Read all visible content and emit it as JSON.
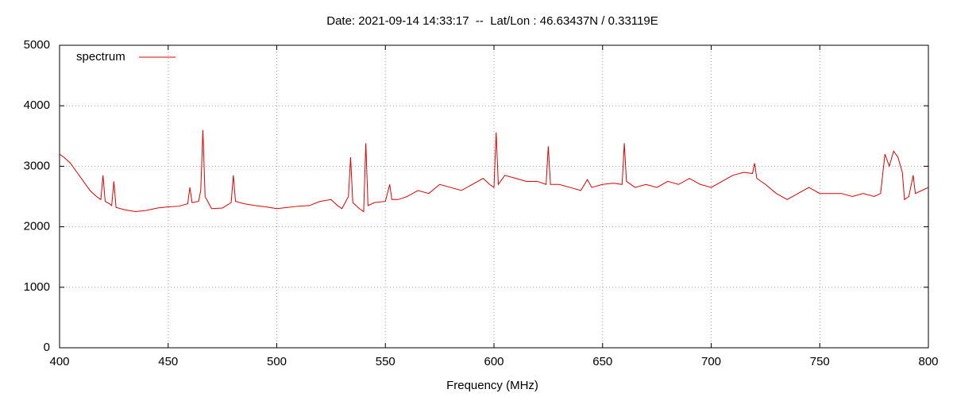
{
  "chart_data": {
    "type": "line",
    "title": "Date: 2021-09-14 14:33:17  --  Lat/Lon : 46.63437N / 0.33119E",
    "x_label": "Frequency (MHz)",
    "x": [
      400,
      402,
      405,
      408,
      411,
      414,
      417,
      419,
      420,
      421,
      423,
      424,
      425,
      426,
      430,
      435,
      440,
      445,
      450,
      455,
      459,
      460,
      461,
      464,
      465,
      466,
      467,
      470,
      475,
      479,
      480,
      481,
      485,
      490,
      495,
      500,
      505,
      510,
      515,
      520,
      525,
      528,
      530,
      533,
      534,
      535,
      538,
      540,
      541,
      542,
      545,
      550,
      552,
      553,
      556,
      560,
      565,
      570,
      575,
      580,
      585,
      590,
      595,
      598,
      600,
      601,
      602,
      605,
      610,
      615,
      620,
      624,
      625,
      626,
      630,
      635,
      640,
      643,
      645,
      650,
      655,
      659,
      660,
      661,
      665,
      670,
      675,
      680,
      685,
      690,
      695,
      700,
      705,
      710,
      715,
      719,
      720,
      721,
      725,
      730,
      735,
      740,
      745,
      750,
      755,
      760,
      765,
      770,
      775,
      778,
      780,
      782,
      784,
      786,
      788,
      789,
      791,
      793,
      794,
      797,
      800
    ],
    "series": [
      {
        "name": "spectrum",
        "color": "#e00000",
        "values": [
          3200,
          3150,
          3050,
          2900,
          2750,
          2600,
          2500,
          2450,
          2850,
          2420,
          2380,
          2350,
          2750,
          2320,
          2280,
          2250,
          2270,
          2310,
          2330,
          2340,
          2380,
          2650,
          2400,
          2420,
          2600,
          3600,
          2500,
          2300,
          2310,
          2400,
          2850,
          2420,
          2380,
          2350,
          2330,
          2300,
          2320,
          2340,
          2350,
          2420,
          2450,
          2350,
          2300,
          2500,
          3150,
          2400,
          2300,
          2250,
          3380,
          2350,
          2400,
          2420,
          2700,
          2450,
          2450,
          2500,
          2600,
          2550,
          2700,
          2650,
          2600,
          2700,
          2800,
          2700,
          2650,
          3560,
          2700,
          2850,
          2800,
          2750,
          2750,
          2700,
          3330,
          2700,
          2700,
          2650,
          2600,
          2780,
          2650,
          2700,
          2720,
          2700,
          3380,
          2750,
          2650,
          2700,
          2650,
          2750,
          2700,
          2800,
          2700,
          2650,
          2750,
          2850,
          2900,
          2880,
          3050,
          2800,
          2700,
          2550,
          2450,
          2550,
          2650,
          2550,
          2550,
          2550,
          2500,
          2550,
          2500,
          2550,
          3200,
          3000,
          3250,
          3150,
          2900,
          2450,
          2500,
          2850,
          2550,
          2600,
          2650
        ]
      }
    ],
    "xlim": [
      400,
      800
    ],
    "xticks": [
      400,
      450,
      500,
      550,
      600,
      650,
      700,
      750,
      800
    ],
    "ylim": [
      0,
      5000
    ],
    "yticks": [
      0,
      1000,
      2000,
      3000,
      4000,
      5000
    ],
    "grid": true,
    "legend": "top-left"
  }
}
